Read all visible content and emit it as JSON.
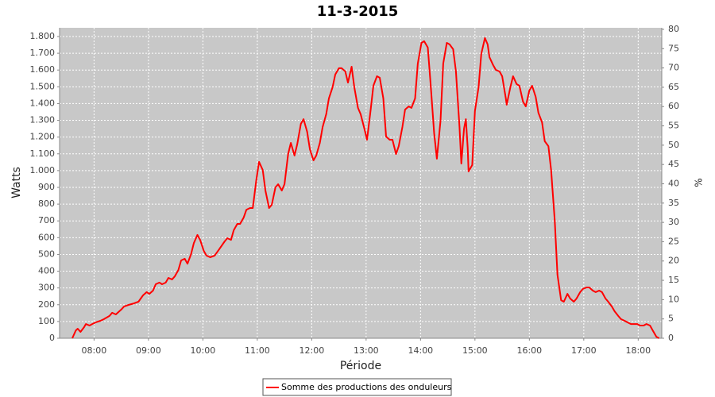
{
  "chart_data": {
    "type": "line",
    "title": "11-3-2015",
    "xlabel": "Période",
    "ylabel": "Watts",
    "y2label": "%",
    "x": [
      "07:36",
      "07:40",
      "07:42",
      "07:45",
      "07:49",
      "07:51",
      "07:55",
      "07:58",
      "08:02",
      "08:07",
      "08:11",
      "08:17",
      "08:20",
      "08:24",
      "08:30",
      "08:33",
      "08:38",
      "08:44",
      "08:49",
      "08:54",
      "08:58",
      "09:01",
      "09:05",
      "09:08",
      "09:12",
      "09:15",
      "09:19",
      "09:22",
      "09:26",
      "09:29",
      "09:33",
      "09:36",
      "09:40",
      "09:43",
      "09:47",
      "09:50",
      "09:54",
      "09:57",
      "10:01",
      "10:04",
      "10:08",
      "10:13",
      "10:18",
      "10:24",
      "10:27",
      "10:31",
      "10:34",
      "10:38",
      "10:41",
      "10:45",
      "10:48",
      "10:52",
      "10:55",
      "10:59",
      "11:02",
      "11:06",
      "11:09",
      "11:13",
      "11:16",
      "11:20",
      "11:23",
      "11:27",
      "11:30",
      "11:34",
      "11:37",
      "11:41",
      "11:44",
      "11:48",
      "11:51",
      "11:55",
      "11:58",
      "12:02",
      "12:05",
      "12:09",
      "12:12",
      "12:16",
      "12:19",
      "12:23",
      "12:26",
      "12:30",
      "12:33",
      "12:37",
      "12:40",
      "12:44",
      "12:47",
      "12:51",
      "12:54",
      "12:58",
      "13:01",
      "13:05",
      "13:08",
      "13:12",
      "13:15",
      "13:19",
      "13:22",
      "13:26",
      "13:29",
      "13:33",
      "13:36",
      "13:40",
      "13:43",
      "13:47",
      "13:50",
      "13:54",
      "13:57",
      "14:01",
      "14:04",
      "14:08",
      "14:11",
      "14:15",
      "14:18",
      "14:22",
      "14:25",
      "14:29",
      "14:32",
      "14:36",
      "14:39",
      "14:43",
      "14:45",
      "14:48",
      "14:50",
      "14:52",
      "14:53",
      "14:57",
      "15:00",
      "15:04",
      "15:07",
      "15:11",
      "15:14",
      "15:16",
      "15:20",
      "15:23",
      "15:27",
      "15:30",
      "15:34",
      "15:35",
      "15:39",
      "15:42",
      "15:46",
      "15:49",
      "15:53",
      "15:56",
      "16:00",
      "16:03",
      "16:07",
      "16:10",
      "16:14",
      "16:17",
      "16:21",
      "16:24",
      "16:28",
      "16:31",
      "16:35",
      "16:38",
      "16:42",
      "16:45",
      "16:49",
      "16:52",
      "16:56",
      "16:59",
      "17:03",
      "17:06",
      "17:10",
      "17:13",
      "17:17",
      "17:20",
      "17:24",
      "17:27",
      "17:31",
      "17:34",
      "17:38",
      "17:41",
      "17:45",
      "17:48",
      "17:52",
      "17:55",
      "17:59",
      "18:02",
      "18:06",
      "18:09",
      "18:13",
      "18:16",
      "18:20",
      "18:23"
    ],
    "series": [
      {
        "name": "Somme des productions des onduleurs",
        "color": "#ff0000",
        "values": [
          0,
          47,
          57,
          38,
          66,
          85,
          76,
          85,
          95,
          104,
          114,
          133,
          152,
          142,
          171,
          189,
          199,
          208,
          218,
          256,
          275,
          265,
          284,
          322,
          332,
          322,
          332,
          360,
          351,
          369,
          407,
          464,
          474,
          445,
          502,
          568,
          616,
          587,
          521,
          493,
          483,
          493,
          531,
          578,
          597,
          587,
          644,
          682,
          682,
          720,
          767,
          777,
          777,
          947,
          1052,
          1004,
          881,
          777,
          796,
          900,
          919,
          881,
          919,
          1099,
          1165,
          1090,
          1156,
          1279,
          1307,
          1232,
          1127,
          1061,
          1090,
          1165,
          1260,
          1336,
          1431,
          1497,
          1573,
          1611,
          1611,
          1592,
          1525,
          1620,
          1497,
          1374,
          1336,
          1251,
          1184,
          1364,
          1506,
          1563,
          1554,
          1431,
          1203,
          1184,
          1184,
          1099,
          1146,
          1260,
          1364,
          1383,
          1374,
          1431,
          1639,
          1762,
          1772,
          1734,
          1525,
          1222,
          1071,
          1298,
          1639,
          1762,
          1753,
          1724,
          1592,
          1260,
          1042,
          1251,
          1307,
          1137,
          995,
          1033,
          1355,
          1497,
          1696,
          1791,
          1753,
          1677,
          1630,
          1601,
          1592,
          1563,
          1431,
          1393,
          1497,
          1563,
          1516,
          1506,
          1412,
          1383,
          1478,
          1506,
          1440,
          1345,
          1288,
          1175,
          1146,
          1004,
          701,
          379,
          227,
          218,
          265,
          237,
          218,
          237,
          275,
          294,
          303,
          303,
          284,
          275,
          284,
          275,
          237,
          218,
          189,
          161,
          133,
          114,
          104,
          95,
          85,
          85,
          85,
          76,
          76,
          85,
          76,
          47,
          9,
          0
        ]
      }
    ],
    "xlim": [
      "07:22",
      "18:26"
    ],
    "xticks": [
      "08:00",
      "09:00",
      "10:00",
      "11:00",
      "12:00",
      "13:00",
      "14:00",
      "15:00",
      "16:00",
      "17:00",
      "18:00"
    ],
    "ylim": [
      0,
      1852
    ],
    "yticks": [
      0,
      100,
      200,
      300,
      400,
      500,
      600,
      700,
      800,
      900,
      {
        "value": 1000,
        "label": "1.000"
      },
      {
        "value": 1100,
        "label": "1.100"
      },
      {
        "value": 1200,
        "label": "1.200"
      },
      {
        "value": 1300,
        "label": "1.300"
      },
      {
        "value": 1400,
        "label": "1.400"
      },
      {
        "value": 1500,
        "label": "1.500"
      },
      {
        "value": 1600,
        "label": "1.600"
      },
      {
        "value": 1700,
        "label": "1.700"
      },
      {
        "value": 1800,
        "label": "1.800"
      }
    ],
    "y2lim": [
      0,
      80.4
    ],
    "y2ticks": [
      0,
      5,
      10,
      15,
      20,
      25,
      30,
      35,
      40,
      45,
      50,
      55,
      60,
      65,
      70,
      75,
      80
    ],
    "grid": true
  }
}
